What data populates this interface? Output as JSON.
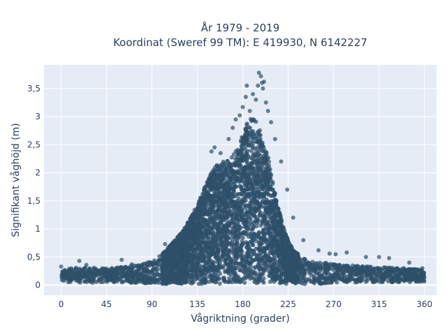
{
  "chart_data": {
    "type": "scatter",
    "title_line1": "År 1979 - 2019",
    "title_line2": "Koordinat (Sweref 99 TM): E 419930, N 6142227",
    "xlabel": "Vågriktning (grader)",
    "ylabel": "Signifikant våghöjd (m)",
    "xlim": [
      -17,
      372
    ],
    "ylim": [
      -0.18,
      3.92
    ],
    "xticks": [
      0,
      45,
      90,
      135,
      180,
      225,
      270,
      315,
      360
    ],
    "xtick_labels": [
      "0",
      "45",
      "90",
      "135",
      "180",
      "225",
      "270",
      "315",
      "360"
    ],
    "yticks": [
      0,
      0.5,
      1,
      1.5,
      2,
      2.5,
      3,
      3.5
    ],
    "ytick_labels": [
      "0",
      "0,5",
      "1",
      "1,5",
      "2",
      "2,5",
      "3",
      "3,5"
    ],
    "grid": true,
    "marker_color": "#2e5069",
    "background_color": "#e5ecf6",
    "envelope": {
      "x": [
        0,
        20,
        45,
        70,
        90,
        100,
        110,
        120,
        130,
        135,
        140,
        145,
        150,
        155,
        160,
        165,
        170,
        175,
        180,
        185,
        190,
        195,
        200,
        205,
        210,
        215,
        220,
        225,
        230,
        240,
        250,
        260,
        270,
        290,
        315,
        340,
        360
      ],
      "y_max": [
        0.28,
        0.32,
        0.3,
        0.34,
        0.42,
        0.55,
        0.75,
        0.95,
        1.25,
        1.45,
        1.65,
        1.85,
        2.05,
        2.15,
        2.2,
        2.25,
        2.3,
        2.45,
        2.75,
        2.9,
        3.0,
        2.85,
        2.6,
        2.3,
        1.8,
        1.4,
        1.05,
        0.8,
        0.62,
        0.48,
        0.42,
        0.4,
        0.38,
        0.35,
        0.32,
        0.3,
        0.28
      ],
      "y_min": [
        0.06,
        0.04,
        0.04,
        0.04,
        0.03,
        0.02,
        0.02,
        0.02,
        0.02,
        0.02,
        0.02,
        0.02,
        0.02,
        0.02,
        0.02,
        0.02,
        0.02,
        0.02,
        0.02,
        0.02,
        0.02,
        0.02,
        0.02,
        0.02,
        0.02,
        0.02,
        0.02,
        0.02,
        0.02,
        0.02,
        0.02,
        0.02,
        0.03,
        0.04,
        0.04,
        0.05,
        0.06
      ]
    },
    "outliers": [
      {
        "x": 0,
        "y": 0.33
      },
      {
        "x": 18,
        "y": 0.43
      },
      {
        "x": 25,
        "y": 0.36
      },
      {
        "x": 60,
        "y": 0.45
      },
      {
        "x": 70,
        "y": 0.37
      },
      {
        "x": 103,
        "y": 0.73
      },
      {
        "x": 149,
        "y": 2.38
      },
      {
        "x": 152,
        "y": 2.45
      },
      {
        "x": 158,
        "y": 2.35
      },
      {
        "x": 166,
        "y": 2.6
      },
      {
        "x": 170,
        "y": 2.8
      },
      {
        "x": 173,
        "y": 2.95
      },
      {
        "x": 177,
        "y": 3.02
      },
      {
        "x": 180,
        "y": 3.17
      },
      {
        "x": 183,
        "y": 3.35
      },
      {
        "x": 184,
        "y": 3.55
      },
      {
        "x": 187,
        "y": 3.1
      },
      {
        "x": 190,
        "y": 3.4
      },
      {
        "x": 193,
        "y": 3.3
      },
      {
        "x": 195,
        "y": 3.55
      },
      {
        "x": 196,
        "y": 3.78
      },
      {
        "x": 198,
        "y": 3.72
      },
      {
        "x": 199,
        "y": 3.6
      },
      {
        "x": 200,
        "y": 3.5
      },
      {
        "x": 201,
        "y": 3.62
      },
      {
        "x": 203,
        "y": 3.25
      },
      {
        "x": 205,
        "y": 3.1
      },
      {
        "x": 208,
        "y": 2.9
      },
      {
        "x": 212,
        "y": 2.6
      },
      {
        "x": 218,
        "y": 2.2
      },
      {
        "x": 224,
        "y": 1.7
      },
      {
        "x": 230,
        "y": 1.2
      },
      {
        "x": 240,
        "y": 0.8
      },
      {
        "x": 255,
        "y": 0.62
      },
      {
        "x": 266,
        "y": 0.56
      },
      {
        "x": 272,
        "y": 0.55
      },
      {
        "x": 283,
        "y": 0.58
      },
      {
        "x": 302,
        "y": 0.5
      },
      {
        "x": 315,
        "y": 0.5
      },
      {
        "x": 325,
        "y": 0.48
      },
      {
        "x": 345,
        "y": 0.4
      },
      {
        "x": 358,
        "y": 0.3
      }
    ]
  }
}
